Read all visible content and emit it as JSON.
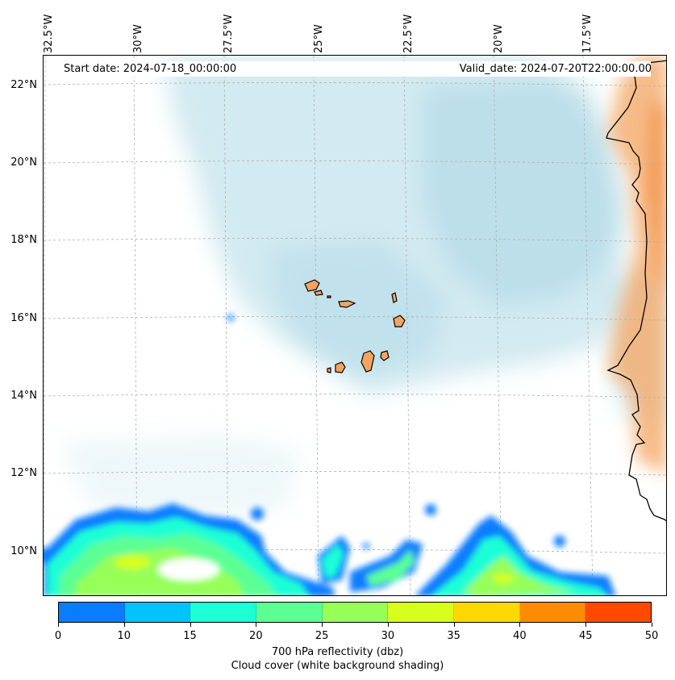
{
  "header": {
    "start_date": "Start date: 2024-07-18_00:00:00",
    "valid_date": "Valid_date: 2024-07-20T22:00:00.00"
  },
  "axes": {
    "longitude_labels": [
      "32.5°W",
      "30°W",
      "27.5°W",
      "25°W",
      "22.5°W",
      "20°W",
      "17.5°W"
    ],
    "latitude_labels": [
      "22°N",
      "20°N",
      "18°N",
      "16°N",
      "14°N",
      "12°N",
      "10°N"
    ]
  },
  "colorbar": {
    "ticks": [
      "0",
      "10",
      "15",
      "20",
      "25",
      "30",
      "35",
      "40",
      "45",
      "50"
    ],
    "colors": [
      "#0a7dff",
      "#00c3ff",
      "#1effd6",
      "#5cff94",
      "#96ff58",
      "#d6ff1e",
      "#ffd800",
      "#ff8c00",
      "#ff4a00"
    ],
    "label": "700 hPa reflectivity (dbz)",
    "sublabel": "Cloud cover (white background shading)"
  },
  "colors": {
    "cloud": "#add8e6",
    "land_orange": "#f4a460",
    "coast": "#000000"
  }
}
